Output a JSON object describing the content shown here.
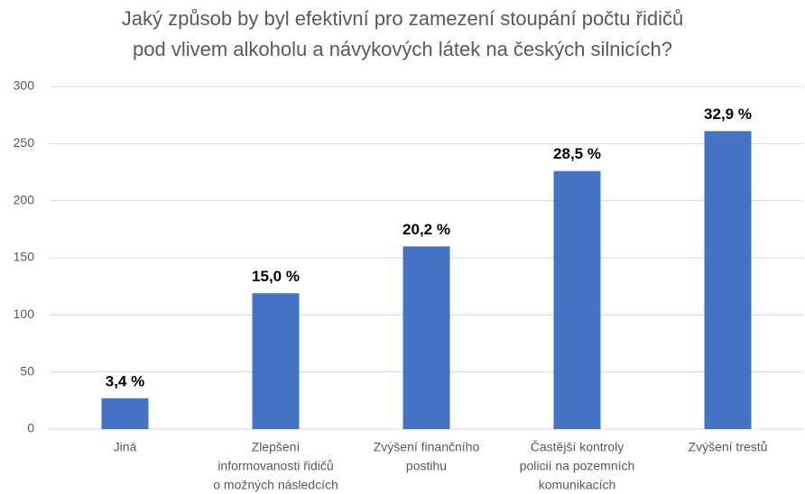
{
  "chart_data": {
    "type": "bar",
    "title": [
      "Jaký způsob by byl efektivní pro zamezení stoupání počtu řidičů",
      "pod vlivem alkoholu a návykových látek na českých silnicích?"
    ],
    "categories": [
      [
        "Jiná"
      ],
      [
        "Zlepšení",
        "informovanosti řidičů",
        "o možných následcích"
      ],
      [
        "Zvýšení finančního",
        "postihu"
      ],
      [
        "Častější kontroly",
        "policií na pozemních",
        "komunikacích"
      ],
      [
        "Zvýšení trestů"
      ]
    ],
    "values": [
      27,
      119,
      160,
      226,
      261
    ],
    "value_labels": [
      "3,4 %",
      "15,0 %",
      "20,2 %",
      "28,5 %",
      "32,9 %"
    ],
    "color": "#4472c4",
    "ylim": [
      0,
      300
    ],
    "yticks": [
      0,
      50,
      100,
      150,
      200,
      250,
      300
    ],
    "grid": true
  }
}
